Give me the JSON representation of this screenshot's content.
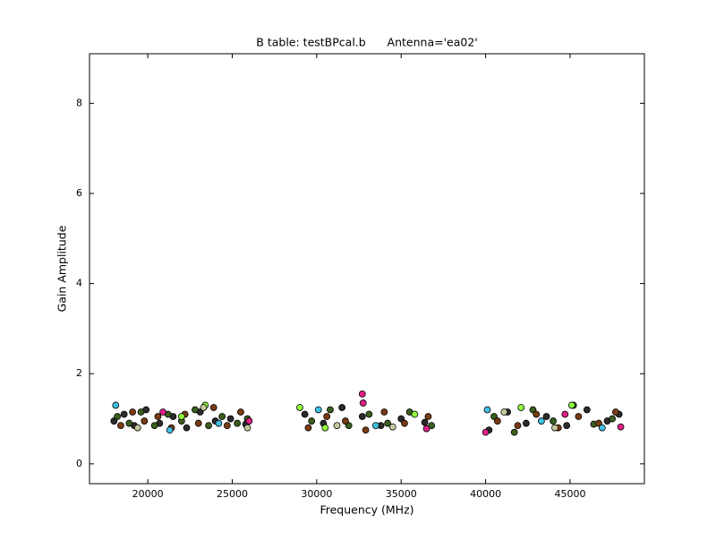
{
  "chart_data": {
    "type": "scatter",
    "title": "B table: testBPcal.b      Antenna='ea02'",
    "x_label": "Frequency (MHz)",
    "y_label": "Gain Amplitude",
    "xlim": [
      16550,
      49400
    ],
    "ylim": [
      -0.44,
      9.1
    ],
    "xticks": [
      20000,
      25000,
      30000,
      35000,
      40000,
      45000
    ],
    "yticks": [
      0,
      2,
      4,
      6,
      8
    ],
    "grid": false,
    "series": [
      {
        "color": "#2b2b2b",
        "x": [
          18000,
          18600,
          19200,
          19900,
          20700,
          21500,
          22300,
          23100,
          24000,
          24900,
          25800,
          29300,
          30400,
          31500,
          32700,
          33800,
          35000,
          36400,
          40200,
          41300,
          42400,
          43600,
          44800,
          46000,
          47200,
          47900
        ],
        "values": [
          0.95,
          1.1,
          0.85,
          1.2,
          0.9,
          1.05,
          0.8,
          1.15,
          0.95,
          1.0,
          0.88,
          1.1,
          0.9,
          1.25,
          1.05,
          0.85,
          1.0,
          0.92,
          0.75,
          1.15,
          0.9,
          1.05,
          0.85,
          1.2,
          0.95,
          1.1
        ]
      },
      {
        "color": "#3a5f1e",
        "x": [
          18200,
          18900,
          19600,
          20400,
          21200,
          22000,
          22800,
          23600,
          24400,
          25300,
          25900,
          29700,
          30800,
          31900,
          33100,
          34200,
          35500,
          36800,
          40500,
          41700,
          42800,
          44000,
          45200,
          46400,
          47500
        ],
        "values": [
          1.05,
          0.9,
          1.15,
          0.85,
          1.1,
          0.95,
          1.2,
          0.85,
          1.05,
          0.9,
          1.0,
          0.95,
          1.2,
          0.85,
          1.1,
          0.9,
          1.15,
          0.85,
          1.05,
          0.7,
          1.2,
          0.95,
          1.3,
          0.88,
          1.0
        ]
      },
      {
        "color": "#7a3b12",
        "x": [
          18400,
          19100,
          19800,
          20600,
          21400,
          22200,
          23000,
          23900,
          24700,
          25500,
          29500,
          30600,
          31700,
          32900,
          34000,
          35200,
          36600,
          40700,
          41900,
          43000,
          44300,
          45500,
          46700,
          47700
        ],
        "values": [
          0.85,
          1.15,
          0.95,
          1.05,
          0.8,
          1.1,
          0.9,
          1.25,
          0.85,
          1.15,
          0.8,
          1.05,
          0.95,
          0.75,
          1.15,
          0.9,
          1.05,
          0.95,
          0.85,
          1.1,
          0.8,
          1.05,
          0.9,
          1.15
        ]
      },
      {
        "color": "#40c0e0",
        "x": [
          18100,
          21300,
          24200,
          30100,
          33500,
          40100,
          43300,
          46900
        ],
        "values": [
          1.3,
          0.75,
          0.9,
          1.2,
          0.85,
          1.2,
          0.95,
          0.8
        ]
      },
      {
        "color": "#e0208a",
        "x": [
          20900,
          26000,
          32700,
          32750,
          36500,
          40000,
          44700,
          48000
        ],
        "values": [
          1.15,
          0.95,
          1.55,
          1.35,
          0.78,
          0.7,
          1.1,
          0.82
        ]
      },
      {
        "color": "#90ff40",
        "x": [
          22000,
          23400,
          29000,
          30500,
          35800,
          42100,
          45100
        ],
        "values": [
          1.05,
          1.3,
          1.25,
          0.8,
          1.1,
          1.25,
          1.3
        ]
      },
      {
        "color": "#c8c8a0",
        "x": [
          19400,
          23300,
          25900,
          31200,
          34500,
          41100,
          44100
        ],
        "values": [
          0.8,
          1.25,
          0.8,
          0.85,
          0.82,
          1.15,
          0.8
        ]
      }
    ]
  }
}
